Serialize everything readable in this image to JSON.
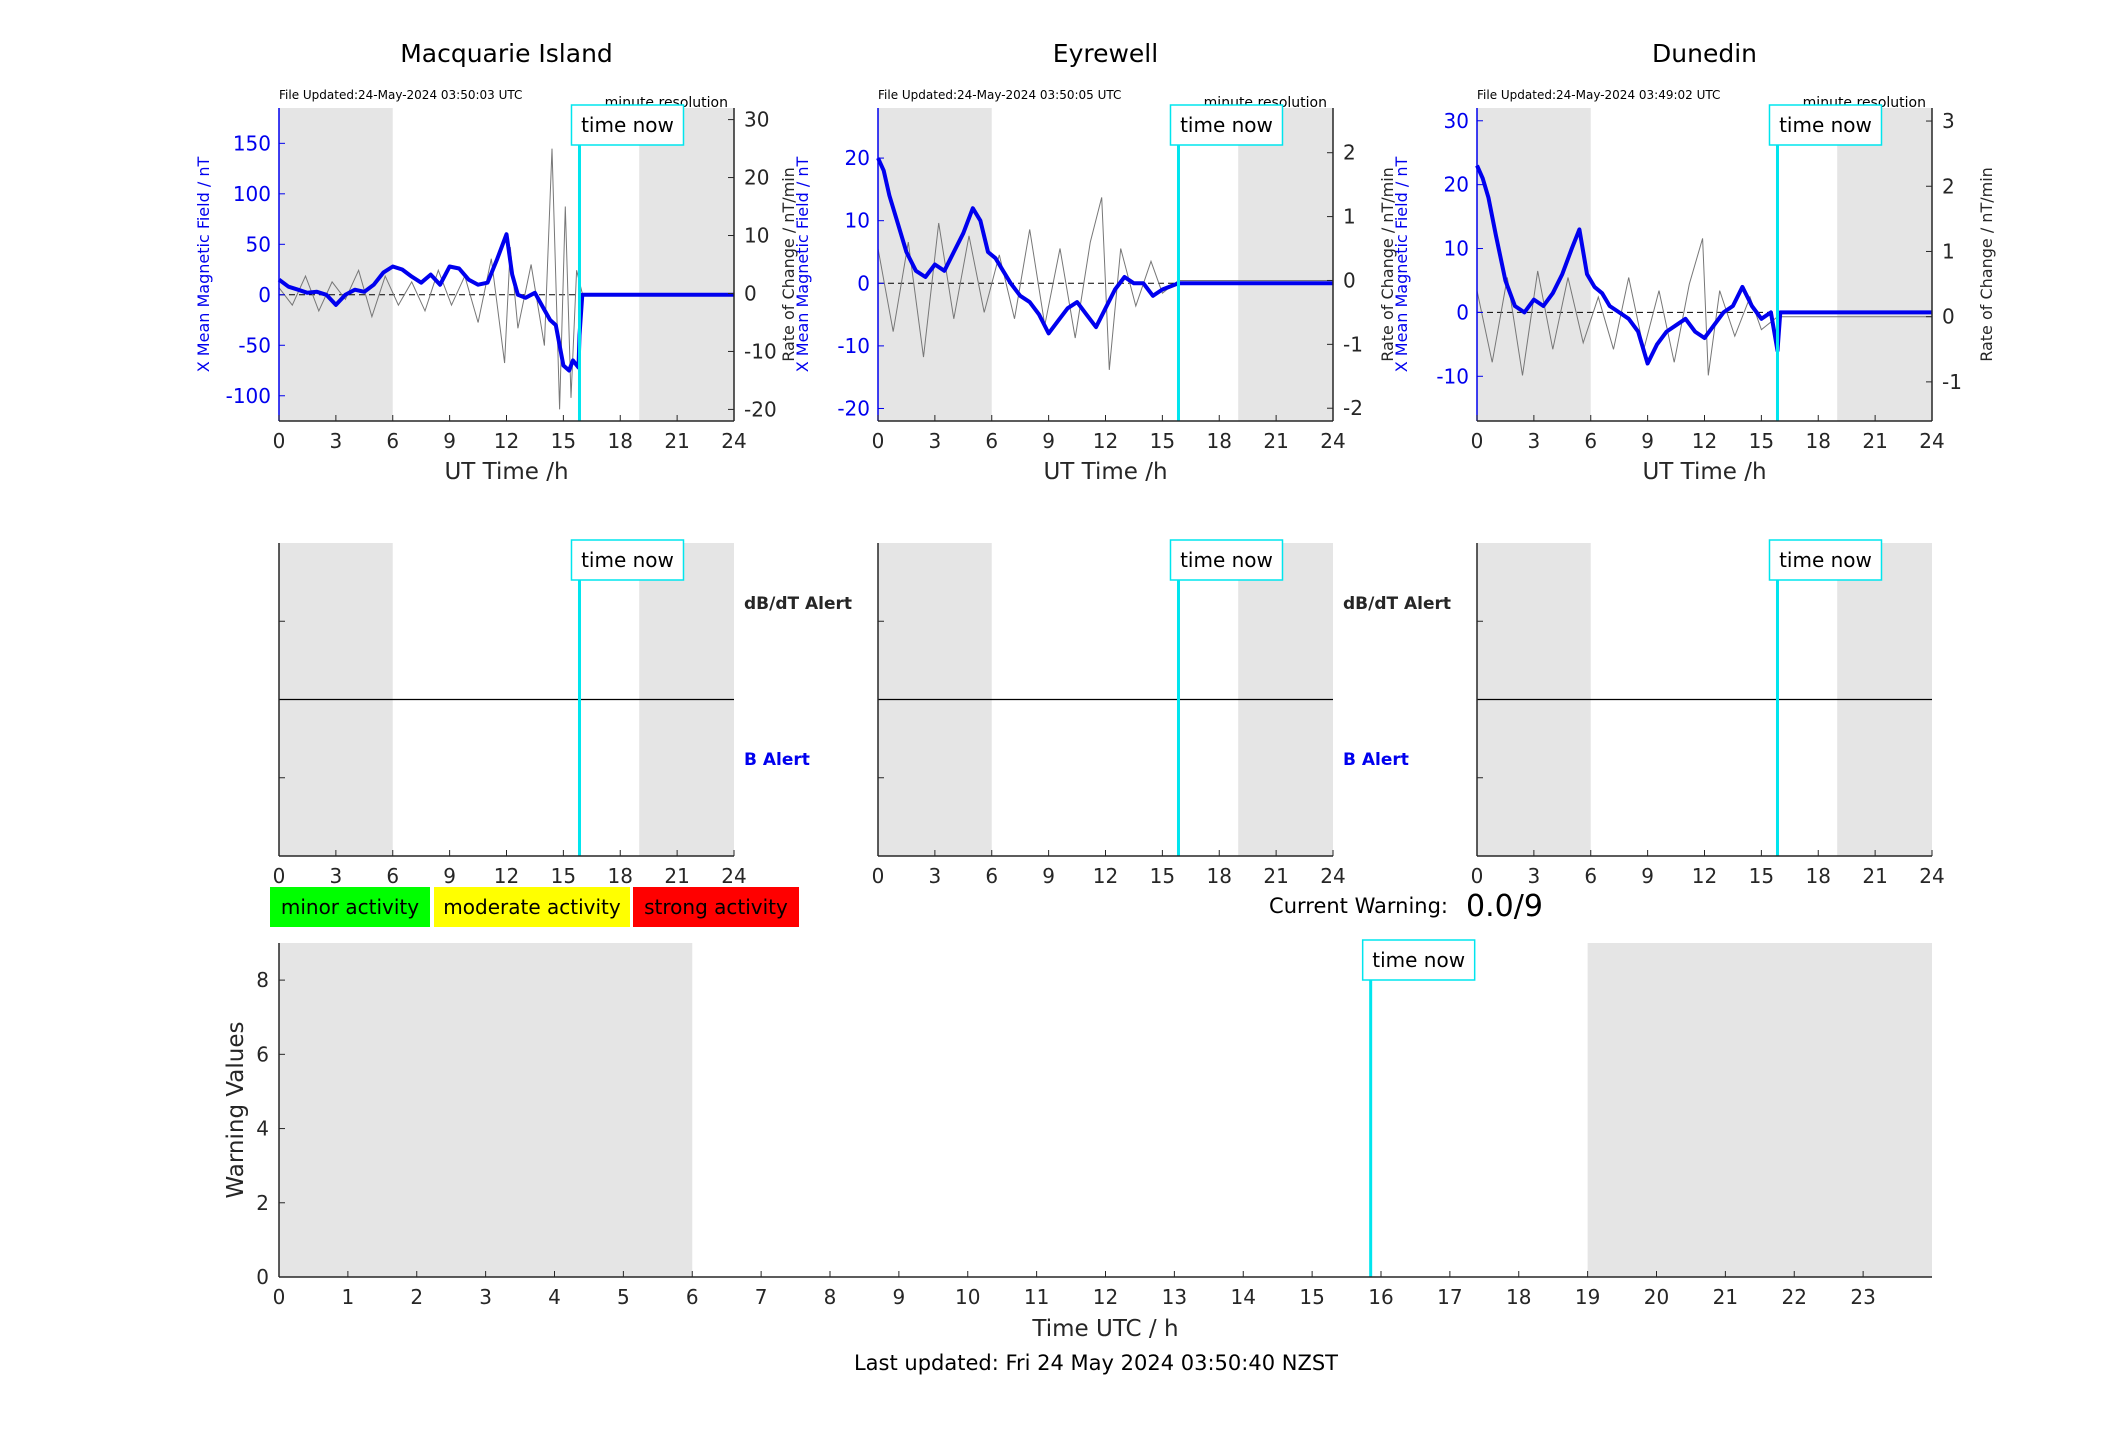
{
  "page": {
    "last_updated": "Last updated: Fri 24 May 2024 03:50:40 NZST"
  },
  "labels": {
    "time_now": "time now",
    "minute_resolution": "minute resolution",
    "x_axis_ut": "UT Time /h",
    "y_axis_left": "X Mean Magnetic Field / nT",
    "y_axis_right": "Rate of Change / nT/min",
    "dbdt_alert": "dB/dT Alert",
    "b_alert": "B Alert",
    "current_warning_label": "Current Warning:",
    "current_warning_value": "0.0/9",
    "warning_y_label": "Warning Values",
    "warning_x_label": "Time UTC / h"
  },
  "legend": [
    {
      "label": "minor activity",
      "color": "#00ff00"
    },
    {
      "label": "moderate activity",
      "color": "#ffff00"
    },
    {
      "label": "strong activity",
      "color": "#ff0000"
    }
  ],
  "colors": {
    "field": "#0000ee",
    "rate": "#777777",
    "time_now": "#00e5ee",
    "shade": "#e5e5e5"
  },
  "chart_data": [
    {
      "type": "line",
      "title": "Macquarie Island",
      "file_updated": "File Updated:24-May-2024 03:50:03 UTC",
      "xlabel": "UT Time /h",
      "ylabel": "X Mean Magnetic Field / nT",
      "ylabel_right": "Rate of Change / nT/min",
      "xlim": [
        0,
        24
      ],
      "ylim": [
        -125,
        185
      ],
      "ylim_right": [
        -22,
        32
      ],
      "xticks": [
        0,
        3,
        6,
        9,
        12,
        15,
        18,
        21,
        24
      ],
      "yticks": [
        -100,
        -50,
        0,
        50,
        100,
        150
      ],
      "yticks_right": [
        -20,
        -10,
        0,
        10,
        20,
        30
      ],
      "shaded": [
        [
          0,
          6
        ],
        [
          19,
          24
        ]
      ],
      "time_now": 15.85,
      "series": [
        {
          "axis": "left",
          "x": [
            0,
            0.5,
            1,
            1.5,
            2,
            2.5,
            3,
            3.5,
            4,
            4.5,
            5,
            5.5,
            6,
            6.5,
            7,
            7.5,
            8,
            8.5,
            9,
            9.5,
            10,
            10.5,
            11,
            11.5,
            12,
            12.3,
            12.6,
            13,
            13.5,
            14,
            14.3,
            14.6,
            15,
            15.3,
            15.5,
            15.8,
            15.85,
            16,
            24
          ],
          "y": [
            15,
            8,
            5,
            2,
            3,
            0,
            -10,
            0,
            5,
            3,
            10,
            22,
            28,
            25,
            18,
            12,
            20,
            10,
            28,
            26,
            15,
            10,
            12,
            35,
            60,
            20,
            0,
            -3,
            2,
            -15,
            -25,
            -30,
            -70,
            -75,
            -65,
            -72,
            -40,
            0,
            0
          ]
        },
        {
          "axis": "right",
          "x": [
            0,
            0.7,
            1.4,
            2.1,
            2.8,
            3.5,
            4.2,
            4.9,
            5.6,
            6.3,
            7,
            7.7,
            8.4,
            9.1,
            9.8,
            10.5,
            11.2,
            11.9,
            12.2,
            12.6,
            13.3,
            14,
            14.4,
            14.8,
            15.1,
            15.4,
            15.7,
            16,
            24
          ],
          "y": [
            1,
            -2,
            3,
            -3,
            2,
            -1,
            4,
            -4,
            3,
            -2,
            2,
            -3,
            4,
            -2,
            3,
            -5,
            6,
            -12,
            8,
            -6,
            5,
            -9,
            25,
            -20,
            15,
            -18,
            4,
            0,
            0
          ]
        }
      ]
    },
    {
      "type": "line",
      "title": "Eyrewell",
      "file_updated": "File Updated:24-May-2024 03:50:05 UTC",
      "xlabel": "UT Time /h",
      "ylabel": "X Mean Magnetic Field / nT",
      "ylabel_right": "Rate of Change / nT/min",
      "xlim": [
        0,
        24
      ],
      "ylim": [
        -22,
        28
      ],
      "ylim_right": [
        -2.2,
        2.7
      ],
      "xticks": [
        0,
        3,
        6,
        9,
        12,
        15,
        18,
        21,
        24
      ],
      "yticks": [
        -20,
        -10,
        0,
        10,
        20
      ],
      "yticks_right": [
        -2,
        -1,
        0,
        1,
        2
      ],
      "shaded": [
        [
          0,
          6
        ],
        [
          19,
          24
        ]
      ],
      "time_now": 15.85,
      "series": [
        {
          "axis": "left",
          "x": [
            0,
            0.3,
            0.6,
            1,
            1.5,
            2,
            2.5,
            3,
            3.5,
            4,
            4.5,
            5,
            5.4,
            5.8,
            6.2,
            6.6,
            7,
            7.5,
            8,
            8.5,
            9,
            9.5,
            10,
            10.5,
            11,
            11.5,
            12,
            12.5,
            13,
            13.5,
            14,
            14.5,
            15,
            15.85,
            24
          ],
          "y": [
            20,
            18,
            14,
            10,
            5,
            2,
            1,
            3,
            2,
            5,
            8,
            12,
            10,
            5,
            4,
            2,
            0,
            -2,
            -3,
            -5,
            -8,
            -6,
            -4,
            -3,
            -5,
            -7,
            -4,
            -1,
            1,
            0,
            0,
            -2,
            -1,
            0,
            0
          ]
        },
        {
          "axis": "right",
          "x": [
            0,
            0.8,
            1.6,
            2.4,
            3.2,
            4,
            4.8,
            5.6,
            6.4,
            7.2,
            8,
            8.8,
            9.6,
            10.4,
            11.2,
            11.8,
            12.2,
            12.8,
            13.6,
            14.4,
            15,
            15.85,
            24
          ],
          "y": [
            0.5,
            -0.8,
            0.6,
            -1.2,
            0.9,
            -0.6,
            0.7,
            -0.5,
            0.4,
            -0.6,
            0.8,
            -0.7,
            0.5,
            -0.9,
            0.6,
            1.3,
            -1.4,
            0.5,
            -0.4,
            0.3,
            -0.2,
            0,
            0
          ]
        }
      ]
    },
    {
      "type": "line",
      "title": "Dunedin",
      "file_updated": "File Updated:24-May-2024 03:49:02 UTC",
      "xlabel": "UT Time /h",
      "ylabel": "X Mean Magnetic Field / nT",
      "ylabel_right": "Rate of Change / nT/min",
      "xlim": [
        0,
        24
      ],
      "ylim": [
        -17,
        32
      ],
      "ylim_right": [
        -1.6,
        3.2
      ],
      "xticks": [
        0,
        3,
        6,
        9,
        12,
        15,
        18,
        21,
        24
      ],
      "yticks": [
        -10,
        0,
        10,
        20,
        30
      ],
      "yticks_right": [
        -1,
        0,
        1,
        2,
        3
      ],
      "shaded": [
        [
          0,
          6
        ],
        [
          19,
          24
        ]
      ],
      "time_now": 15.85,
      "series": [
        {
          "axis": "left",
          "x": [
            0,
            0.3,
            0.6,
            1,
            1.5,
            2,
            2.5,
            3,
            3.5,
            4,
            4.5,
            5,
            5.4,
            5.8,
            6.2,
            6.6,
            7,
            7.5,
            8,
            8.5,
            9,
            9.5,
            10,
            10.5,
            11,
            11.5,
            12,
            12.5,
            13,
            13.5,
            14,
            14.5,
            15,
            15.5,
            15.85,
            16,
            24
          ],
          "y": [
            23,
            21,
            18,
            12,
            5,
            1,
            0,
            2,
            1,
            3,
            6,
            10,
            13,
            6,
            4,
            3,
            1,
            0,
            -1,
            -3,
            -8,
            -5,
            -3,
            -2,
            -1,
            -3,
            -4,
            -2,
            0,
            1,
            4,
            1,
            -1,
            0,
            -6,
            0,
            0
          ]
        },
        {
          "axis": "right",
          "x": [
            0,
            0.8,
            1.6,
            2.4,
            3.2,
            4,
            4.8,
            5.6,
            6.4,
            7.2,
            8,
            8.8,
            9.6,
            10.4,
            11.2,
            11.9,
            12.2,
            12.8,
            13.6,
            14.4,
            15,
            15.85,
            24
          ],
          "y": [
            0.4,
            -0.7,
            0.6,
            -0.9,
            0.7,
            -0.5,
            0.6,
            -0.4,
            0.3,
            -0.5,
            0.6,
            -0.5,
            0.4,
            -0.7,
            0.5,
            1.2,
            -0.9,
            0.4,
            -0.3,
            0.3,
            -0.2,
            0,
            0
          ]
        }
      ]
    },
    {
      "type": "bar",
      "title": "",
      "xlabel": "Time UTC / h",
      "ylabel": "Warning Values",
      "xlim": [
        0,
        24
      ],
      "ylim": [
        0,
        9
      ],
      "xticks": [
        0,
        1,
        2,
        3,
        4,
        5,
        6,
        7,
        8,
        9,
        10,
        11,
        12,
        13,
        14,
        15,
        16,
        17,
        18,
        19,
        20,
        21,
        22,
        23
      ],
      "yticks": [
        0,
        2,
        4,
        6,
        8
      ],
      "shaded": [
        [
          0,
          6
        ],
        [
          19,
          24
        ]
      ],
      "time_now": 15.85,
      "current_warning": 0.0,
      "values": []
    }
  ]
}
